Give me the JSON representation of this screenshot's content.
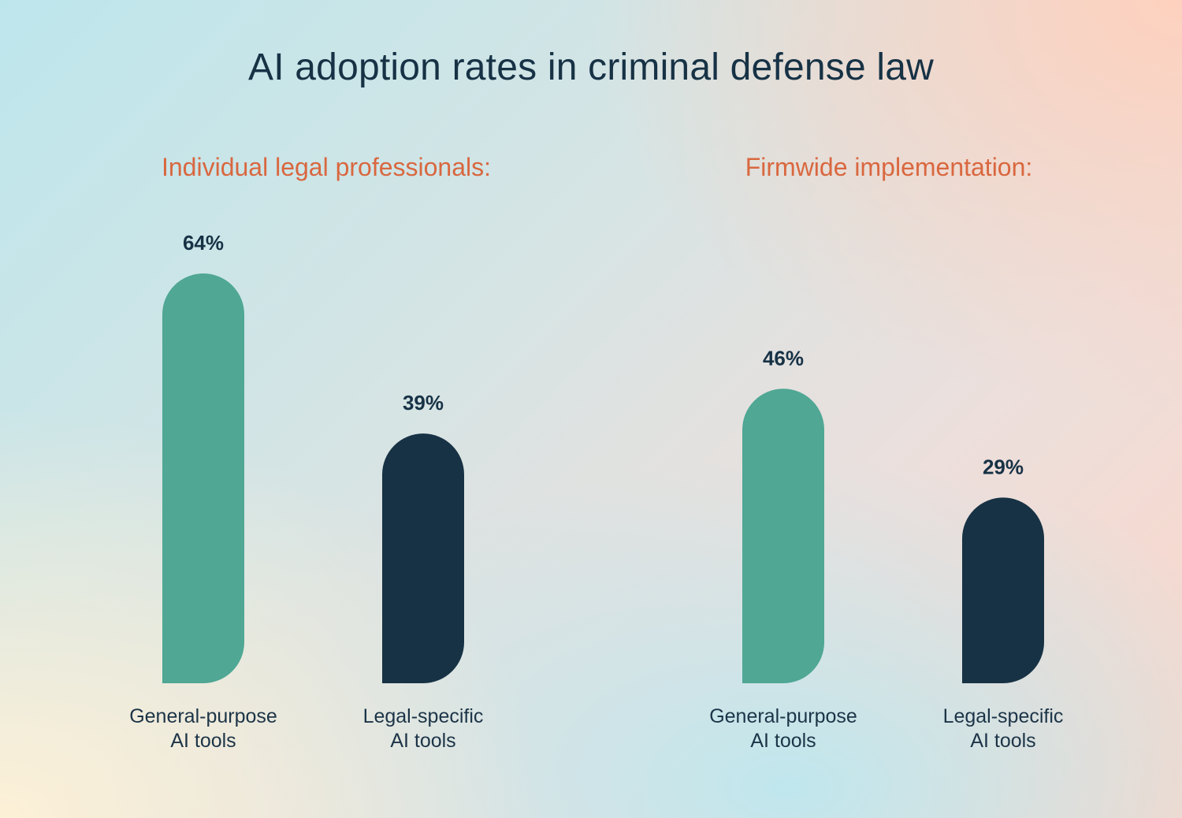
{
  "title": "AI adoption rates in criminal defense law",
  "colors": {
    "general": "#4fa794",
    "legal": "#173244",
    "group_title": "#d9673f",
    "text": "#173245"
  },
  "chart_data": {
    "type": "bar",
    "title": "AI adoption rates in criminal defense law",
    "unit": "%",
    "ylim": [
      0,
      100
    ],
    "grid": false,
    "groups": [
      {
        "name": "Individual legal professionals:",
        "bars": [
          {
            "label_line1": "General-purpose",
            "label_line2": "AI tools",
            "value": 64,
            "value_label": "64%",
            "color": "#4fa794"
          },
          {
            "label_line1": "Legal-specific",
            "label_line2": "AI tools",
            "value": 39,
            "value_label": "39%",
            "color": "#173244"
          }
        ]
      },
      {
        "name": "Firmwide implementation:",
        "bars": [
          {
            "label_line1": "General-purpose",
            "label_line2": "AI tools",
            "value": 46,
            "value_label": "46%",
            "color": "#4fa794"
          },
          {
            "label_line1": "Legal-specific",
            "label_line2": "AI tools",
            "value": 29,
            "value_label": "29%",
            "color": "#173244"
          }
        ]
      }
    ]
  }
}
